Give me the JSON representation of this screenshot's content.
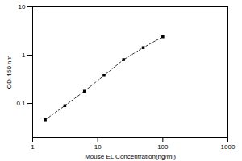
{
  "chart_data": {
    "type": "line",
    "x_label": "Mouse EL Concentration(ng/ml)",
    "y_label": "OD-450 nm",
    "x": [
      1.56,
      3.125,
      6.25,
      12.5,
      25,
      50,
      100
    ],
    "values": [
      0.046,
      0.09,
      0.18,
      0.38,
      0.81,
      1.43,
      2.4
    ],
    "color": "#000000",
    "marker": "square",
    "line_style": "dashed",
    "log": true,
    "grid": false,
    "xlim": [
      1,
      1000
    ],
    "xticks": [
      1,
      10,
      100,
      1000
    ],
    "ylim": [
      0.02,
      10
    ],
    "yticks": [
      0.1,
      1,
      10
    ]
  }
}
